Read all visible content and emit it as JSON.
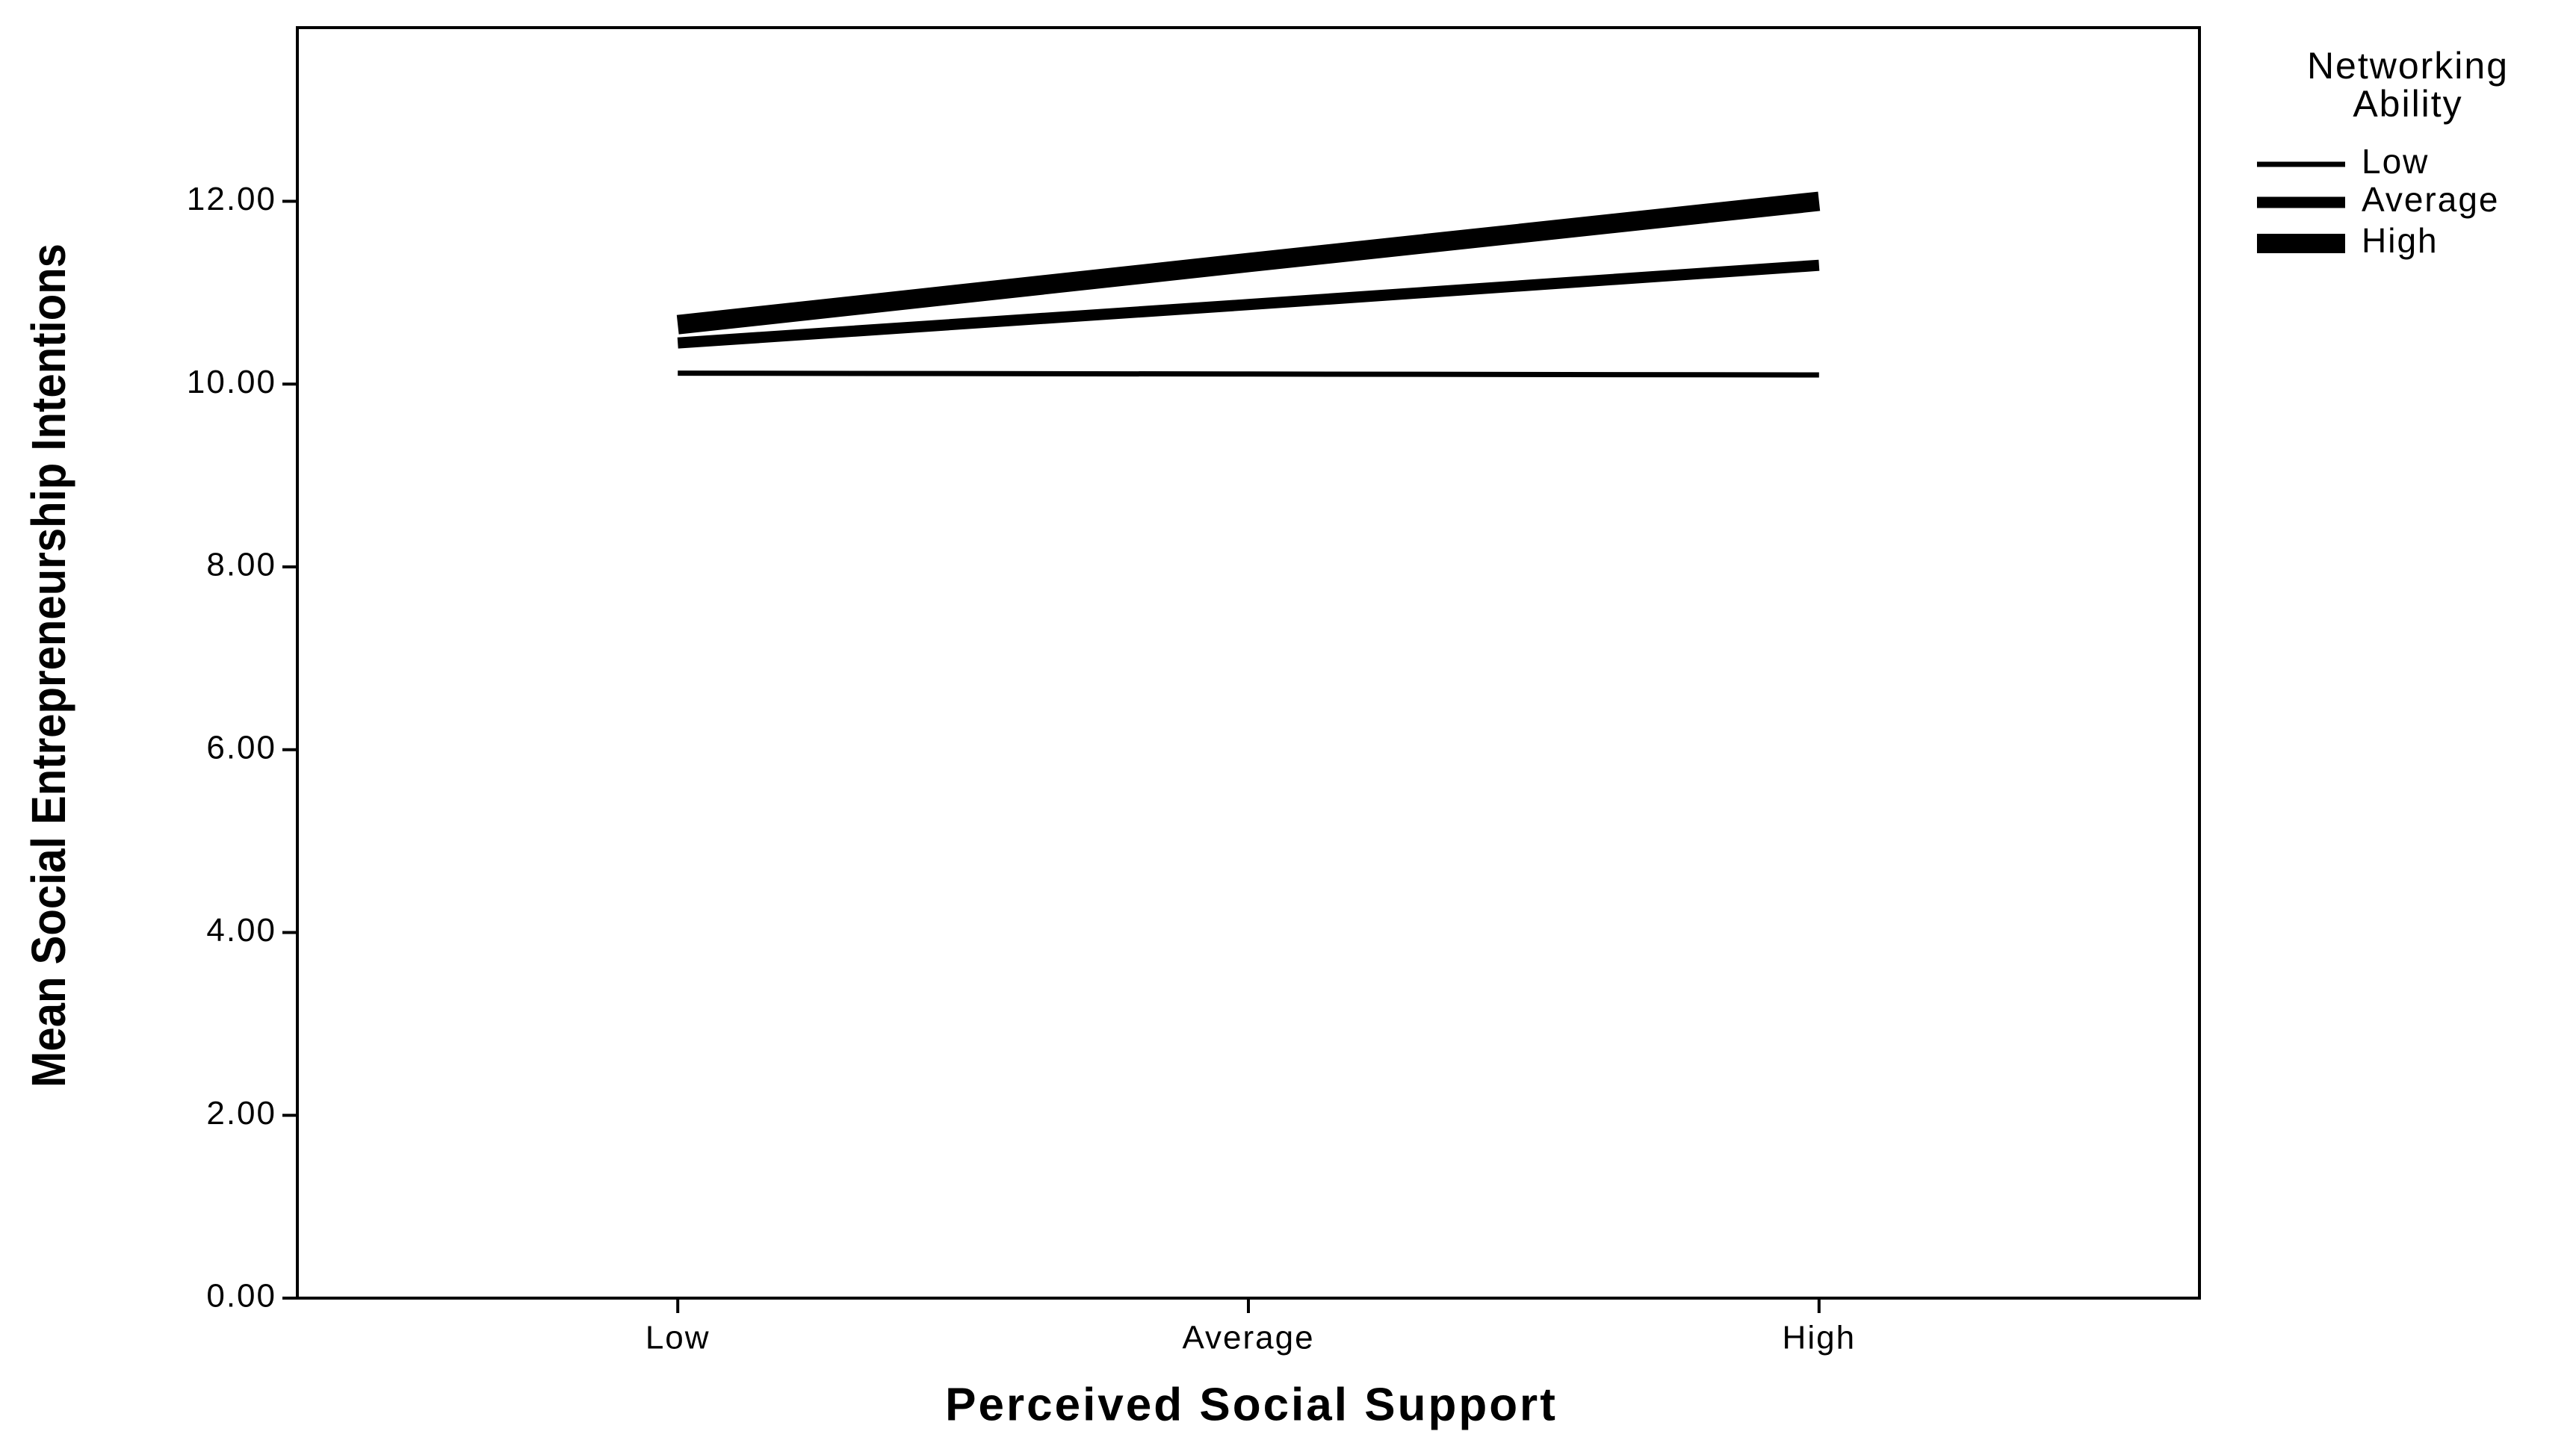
{
  "chart_data": {
    "type": "line",
    "x_label": "Perceived Social Support",
    "y_label": "Mean Social Entrepreneurship Intentions",
    "legend_title": "Networking Ability",
    "legend_position": "right",
    "categories": [
      "Low",
      "Average",
      "High"
    ],
    "series": [
      {
        "name": "Low",
        "color": "#000000",
        "values": [
          10.12,
          10.11,
          10.1
        ]
      },
      {
        "name": "Average",
        "color": "#000000",
        "values": [
          10.45,
          10.87,
          11.3
        ]
      },
      {
        "name": "High",
        "color": "#000000",
        "values": [
          10.65,
          11.33,
          12.0
        ]
      }
    ],
    "ylim": [
      0,
      13.9
    ],
    "yticks": [
      {
        "value": 0,
        "label": "0.00"
      },
      {
        "value": 2,
        "label": "2.00"
      },
      {
        "value": 4,
        "label": "4.00"
      },
      {
        "value": 6,
        "label": "6.00"
      },
      {
        "value": 8,
        "label": "8.00"
      },
      {
        "value": 10,
        "label": "10.00"
      },
      {
        "value": 12,
        "label": "12.00"
      }
    ],
    "grid": false
  }
}
